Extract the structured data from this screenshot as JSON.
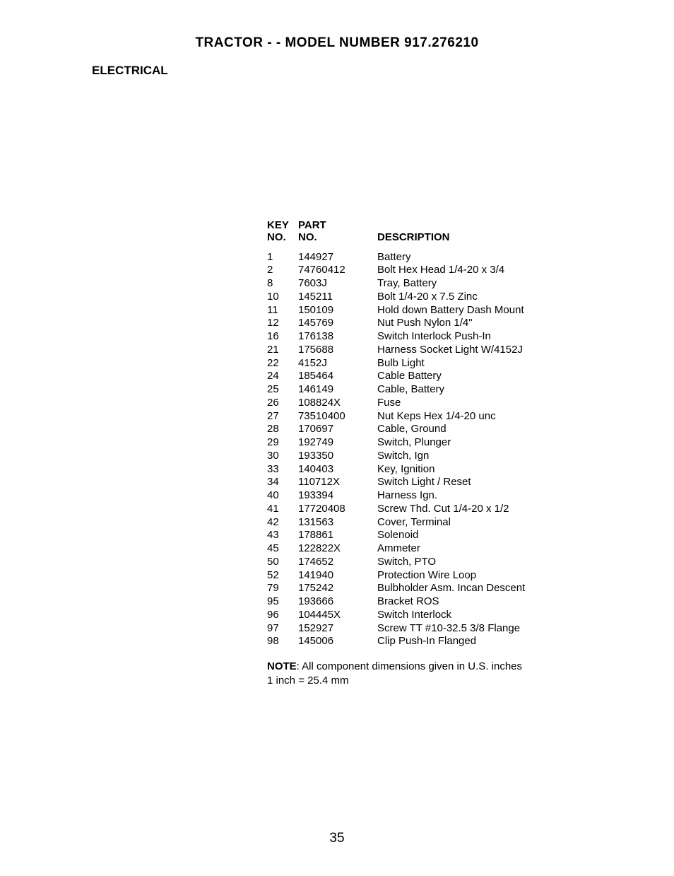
{
  "title": "TRACTOR - - MODEL NUMBER 917.276210",
  "section": "ELECTRICAL",
  "headers": {
    "key1": "KEY",
    "key2": "NO.",
    "part1": "PART",
    "part2": "NO.",
    "desc": "DESCRIPTION"
  },
  "rows": [
    {
      "key": "1",
      "part": "144927",
      "desc": "Battery"
    },
    {
      "key": "2",
      "part": "74760412",
      "desc": "Bolt Hex Head 1/4-20 x 3/4"
    },
    {
      "key": "8",
      "part": "7603J",
      "desc": "Tray, Battery"
    },
    {
      "key": "10",
      "part": "145211",
      "desc": "Bolt 1/4-20 x 7.5 Zinc"
    },
    {
      "key": "11",
      "part": "150109",
      "desc": "Hold down Battery Dash Mount"
    },
    {
      "key": "12",
      "part": "145769",
      "desc": "Nut Push Nylon 1/4\""
    },
    {
      "key": "16",
      "part": "176138",
      "desc": "Switch Interlock Push-In"
    },
    {
      "key": "21",
      "part": "175688",
      "desc": "Harness Socket Light W/4152J"
    },
    {
      "key": "22",
      "part": "4152J",
      "desc": "Bulb Light"
    },
    {
      "key": "24",
      "part": "185464",
      "desc": "Cable Battery"
    },
    {
      "key": "25",
      "part": "146149",
      "desc": "Cable, Battery"
    },
    {
      "key": "26",
      "part": "108824X",
      "desc": "Fuse"
    },
    {
      "key": "27",
      "part": "73510400",
      "desc": "Nut Keps Hex 1/4-20 unc"
    },
    {
      "key": "28",
      "part": "170697",
      "desc": "Cable, Ground"
    },
    {
      "key": "29",
      "part": "192749",
      "desc": "Switch, Plunger"
    },
    {
      "key": "30",
      "part": "193350",
      "desc": "Switch, Ign"
    },
    {
      "key": "33",
      "part": "140403",
      "desc": "Key, Ignition"
    },
    {
      "key": "34",
      "part": "110712X",
      "desc": "Switch Light / Reset"
    },
    {
      "key": "40",
      "part": "193394",
      "desc": "Harness Ign."
    },
    {
      "key": "41",
      "part": "17720408",
      "desc": "Screw Thd. Cut 1/4-20 x 1/2"
    },
    {
      "key": "42",
      "part": "131563",
      "desc": "Cover, Terminal"
    },
    {
      "key": "43",
      "part": "178861",
      "desc": "Solenoid"
    },
    {
      "key": "45",
      "part": "122822X",
      "desc": "Ammeter"
    },
    {
      "key": "50",
      "part": "174652",
      "desc": "Switch, PTO"
    },
    {
      "key": "52",
      "part": "141940",
      "desc": "Protection Wire Loop"
    },
    {
      "key": "79",
      "part": "175242",
      "desc": "Bulbholder Asm. Incan Descent"
    },
    {
      "key": "95",
      "part": "193666",
      "desc": "Bracket ROS"
    },
    {
      "key": "96",
      "part": "104445X",
      "desc": "Switch Interlock"
    },
    {
      "key": "97",
      "part": "152927",
      "desc": "Screw TT #10-32.5 3/8 Flange"
    },
    {
      "key": "98",
      "part": "145006",
      "desc": "Clip Push-In Flanged"
    }
  ],
  "note_label": "NOTE",
  "note_text": ":  All component dimensions given in U.S. inches",
  "note_line2": "1 inch = 25.4 mm",
  "page_number": "35"
}
